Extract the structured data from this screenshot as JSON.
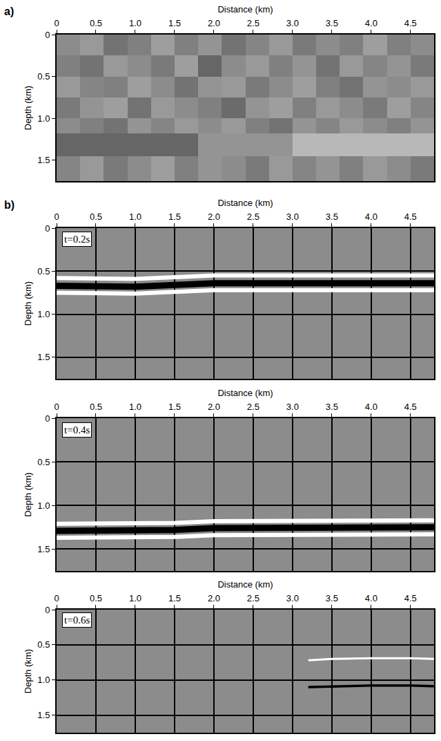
{
  "chart_data": [
    {
      "type": "heatmap",
      "panel": "a)",
      "xlabel": "Distance (km)",
      "ylabel": "Depth (km)",
      "xlim": [
        0,
        4.8
      ],
      "ylim": [
        1.75,
        0
      ],
      "xticks": [
        0,
        0.5,
        {
          "value": 1,
          "label": "1.0"
        },
        1.5,
        {
          "value": 2,
          "label": "2.0"
        },
        2.5,
        {
          "value": 3,
          "label": "3.0"
        },
        3.5,
        {
          "value": 4,
          "label": "4.0"
        },
        4.5
      ],
      "yticks": [
        0,
        0.5,
        {
          "value": 1,
          "label": "1.0"
        },
        1.5
      ],
      "grid": false,
      "x_edges": [
        0,
        0.3,
        0.6,
        0.9,
        1.2,
        1.5,
        1.8,
        2.1,
        2.4,
        2.7,
        3.0,
        3.3,
        3.6,
        3.9,
        4.2,
        4.5,
        4.8
      ],
      "y_edges": [
        0,
        0.25,
        0.5,
        0.75,
        1.0,
        1.18,
        1.45,
        1.75
      ],
      "zlim": [
        0,
        1
      ],
      "cells": [
        [
          0.55,
          0.6,
          0.45,
          0.5,
          0.62,
          0.5,
          0.58,
          0.45,
          0.52,
          0.6,
          0.48,
          0.55,
          0.5,
          0.62,
          0.5,
          0.55
        ],
        [
          0.5,
          0.45,
          0.6,
          0.55,
          0.48,
          0.62,
          0.4,
          0.55,
          0.6,
          0.5,
          0.58,
          0.45,
          0.6,
          0.52,
          0.58,
          0.48
        ],
        [
          0.6,
          0.52,
          0.5,
          0.62,
          0.55,
          0.45,
          0.58,
          0.6,
          0.48,
          0.55,
          0.62,
          0.5,
          0.45,
          0.58,
          0.55,
          0.6
        ],
        [
          0.48,
          0.58,
          0.62,
          0.45,
          0.6,
          0.55,
          0.5,
          0.42,
          0.58,
          0.62,
          0.5,
          0.6,
          0.55,
          0.48,
          0.62,
          0.52
        ],
        [
          0.55,
          0.5,
          0.45,
          0.58,
          0.52,
          0.6,
          0.55,
          0.6,
          0.5,
          0.45,
          0.58,
          0.52,
          0.6,
          0.55,
          0.5,
          0.58
        ],
        [
          0.4,
          0.4,
          0.4,
          0.4,
          0.4,
          0.4,
          0.58,
          0.58,
          0.58,
          0.58,
          0.72,
          0.72,
          0.72,
          0.72,
          0.72,
          0.72
        ],
        [
          0.52,
          0.6,
          0.48,
          0.55,
          0.62,
          0.5,
          0.58,
          0.55,
          0.48,
          0.6,
          0.52,
          0.58,
          0.5,
          0.6,
          0.55,
          0.48
        ]
      ]
    },
    {
      "type": "line",
      "panel": "b)",
      "annotation": "t=0.2s",
      "xlabel": "Distance (km)",
      "ylabel": "Depth (km)",
      "xlim": [
        0,
        4.8
      ],
      "ylim": [
        1.75,
        0
      ],
      "xticks": [
        0,
        0.5,
        {
          "value": 1,
          "label": "1.0"
        },
        1.5,
        {
          "value": 2,
          "label": "2.0"
        },
        2.5,
        {
          "value": 3,
          "label": "3.0"
        },
        3.5,
        {
          "value": 4,
          "label": "4.0"
        },
        4.5
      ],
      "yticks": [
        0,
        0.5,
        {
          "value": 1,
          "label": "1.0"
        },
        1.5
      ],
      "grid": true,
      "series": [
        {
          "color": "white",
          "x": [
            0,
            0.5,
            1.0,
            1.5,
            2.0,
            2.5,
            3.0,
            3.5,
            4.0,
            4.5,
            4.8
          ],
          "values": [
            0.58,
            0.59,
            0.59,
            0.57,
            0.55,
            0.55,
            0.55,
            0.55,
            0.54,
            0.55,
            0.55
          ]
        },
        {
          "color": "white",
          "x": [
            0,
            0.5,
            1.0,
            1.5,
            2.0,
            2.5,
            3.0,
            3.5,
            4.0,
            4.5,
            4.8
          ],
          "values": [
            0.75,
            0.76,
            0.76,
            0.74,
            0.72,
            0.72,
            0.72,
            0.72,
            0.71,
            0.72,
            0.72
          ]
        },
        {
          "color": "black",
          "x": [
            0,
            0.5,
            1.0,
            1.5,
            2.0,
            2.5,
            3.0,
            3.5,
            4.0,
            4.5,
            4.8
          ],
          "values": [
            0.67,
            0.68,
            0.68,
            0.66,
            0.64,
            0.64,
            0.64,
            0.64,
            0.63,
            0.64,
            0.64
          ]
        }
      ]
    },
    {
      "type": "line",
      "annotation": "t=0.4s",
      "xlabel": "Distance (km)",
      "ylabel": "Depth (km)",
      "xlim": [
        0,
        4.8
      ],
      "ylim": [
        1.75,
        0
      ],
      "xticks": [
        0,
        0.5,
        {
          "value": 1,
          "label": "1.0"
        },
        1.5,
        {
          "value": 2,
          "label": "2.0"
        },
        2.5,
        {
          "value": 3,
          "label": "3.0"
        },
        3.5,
        {
          "value": 4,
          "label": "4.0"
        },
        4.5
      ],
      "yticks": [
        0,
        0.5,
        {
          "value": 1,
          "label": "1.0"
        },
        1.5
      ],
      "grid": true,
      "series": [
        {
          "color": "white",
          "x": [
            0,
            0.5,
            1.0,
            1.5,
            2.0,
            2.5,
            3.0,
            3.5,
            4.0,
            4.5,
            4.8
          ],
          "values": [
            1.21,
            1.21,
            1.21,
            1.2,
            1.18,
            1.18,
            1.18,
            1.17,
            1.17,
            1.17,
            1.17
          ]
        },
        {
          "color": "white",
          "x": [
            0,
            0.5,
            1.0,
            1.5,
            2.0,
            2.5,
            3.0,
            3.5,
            4.0,
            4.5,
            4.8
          ],
          "values": [
            1.37,
            1.37,
            1.37,
            1.36,
            1.34,
            1.34,
            1.34,
            1.33,
            1.33,
            1.33,
            1.33
          ]
        },
        {
          "color": "black",
          "x": [
            0,
            0.5,
            1.0,
            1.5,
            2.0,
            2.5,
            3.0,
            3.5,
            4.0,
            4.5,
            4.8
          ],
          "values": [
            1.29,
            1.29,
            1.29,
            1.28,
            1.26,
            1.26,
            1.26,
            1.25,
            1.25,
            1.25,
            1.25
          ]
        }
      ]
    },
    {
      "type": "line",
      "annotation": "t=0.6s",
      "xlabel": "Distance (km)",
      "ylabel": "Depth (km)",
      "xlim": [
        0,
        4.8
      ],
      "ylim": [
        1.75,
        0
      ],
      "xticks": [
        0,
        0.5,
        {
          "value": 1,
          "label": "1.0"
        },
        1.5,
        {
          "value": 2,
          "label": "2.0"
        },
        2.5,
        {
          "value": 3,
          "label": "3.0"
        },
        3.5,
        {
          "value": 4,
          "label": "4.0"
        },
        4.5
      ],
      "yticks": [
        0,
        0.5,
        {
          "value": 1,
          "label": "1.0"
        },
        1.5
      ],
      "grid": true,
      "series": [
        {
          "color": "white",
          "x": [
            3.2,
            3.5,
            4.0,
            4.5,
            4.8
          ],
          "values": [
            0.72,
            0.7,
            0.69,
            0.69,
            0.7
          ]
        },
        {
          "color": "black",
          "x": [
            3.2,
            3.5,
            4.0,
            4.5,
            4.8
          ],
          "values": [
            1.1,
            1.09,
            1.08,
            1.08,
            1.09
          ]
        }
      ]
    }
  ]
}
